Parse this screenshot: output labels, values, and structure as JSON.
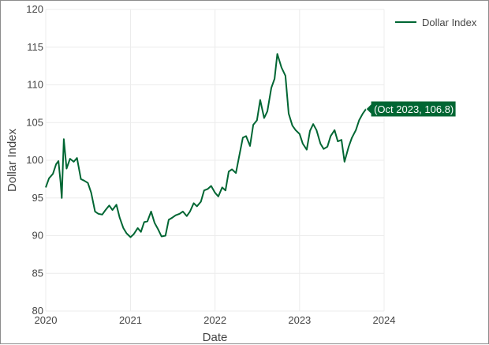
{
  "chart_data": {
    "type": "line",
    "title": "",
    "xlabel": "Date",
    "ylabel": "Dollar Index",
    "xlim": [
      "2020-01-01",
      "2024-01-01"
    ],
    "ylim": [
      80,
      120
    ],
    "x_ticks": [
      "2020",
      "2021",
      "2022",
      "2023",
      "2024"
    ],
    "y_ticks": [
      80,
      85,
      90,
      95,
      100,
      105,
      110,
      115,
      120
    ],
    "grid": true,
    "legend_position": "top-right",
    "series": [
      {
        "name": "Dollar Index",
        "color": "#006633",
        "x": [
          "2020-01-01",
          "2020-01-15",
          "2020-02-01",
          "2020-02-15",
          "2020-02-25",
          "2020-03-05",
          "2020-03-10",
          "2020-03-19",
          "2020-03-31",
          "2020-04-15",
          "2020-05-01",
          "2020-05-15",
          "2020-06-01",
          "2020-06-15",
          "2020-07-01",
          "2020-07-15",
          "2020-08-01",
          "2020-08-15",
          "2020-09-01",
          "2020-09-15",
          "2020-10-01",
          "2020-10-15",
          "2020-11-01",
          "2020-11-15",
          "2020-12-01",
          "2020-12-15",
          "2021-01-01",
          "2021-01-15",
          "2021-02-01",
          "2021-02-15",
          "2021-03-01",
          "2021-03-15",
          "2021-03-31",
          "2021-04-15",
          "2021-05-01",
          "2021-05-15",
          "2021-06-01",
          "2021-06-15",
          "2021-07-01",
          "2021-07-15",
          "2021-08-01",
          "2021-08-15",
          "2021-09-01",
          "2021-09-15",
          "2021-10-01",
          "2021-10-15",
          "2021-11-01",
          "2021-11-15",
          "2021-12-01",
          "2021-12-15",
          "2022-01-01",
          "2022-01-15",
          "2022-02-01",
          "2022-02-15",
          "2022-03-01",
          "2022-03-15",
          "2022-04-01",
          "2022-04-15",
          "2022-05-01",
          "2022-05-15",
          "2022-06-01",
          "2022-06-15",
          "2022-07-01",
          "2022-07-15",
          "2022-08-01",
          "2022-08-15",
          "2022-09-01",
          "2022-09-15",
          "2022-09-27",
          "2022-10-15",
          "2022-11-01",
          "2022-11-15",
          "2022-12-01",
          "2022-12-15",
          "2023-01-01",
          "2023-01-15",
          "2023-02-01",
          "2023-02-15",
          "2023-03-01",
          "2023-03-15",
          "2023-04-01",
          "2023-04-15",
          "2023-05-01",
          "2023-05-15",
          "2023-06-01",
          "2023-06-15",
          "2023-07-01",
          "2023-07-14",
          "2023-08-01",
          "2023-08-15",
          "2023-09-01",
          "2023-09-15",
          "2023-10-01",
          "2023-10-15"
        ],
        "y": [
          96.4,
          97.6,
          98.2,
          99.5,
          99.9,
          97.1,
          95.0,
          102.8,
          98.9,
          100.2,
          99.8,
          100.3,
          97.5,
          97.3,
          97.0,
          95.7,
          93.2,
          92.9,
          92.8,
          93.4,
          94.0,
          93.4,
          94.1,
          92.4,
          91.0,
          90.3,
          89.8,
          90.2,
          91.0,
          90.5,
          91.8,
          91.9,
          93.2,
          91.7,
          90.8,
          89.9,
          90.0,
          92.1,
          92.4,
          92.7,
          92.9,
          93.2,
          92.6,
          93.2,
          94.3,
          93.9,
          94.5,
          96.0,
          96.2,
          96.6,
          95.7,
          95.2,
          96.4,
          96.0,
          98.5,
          98.8,
          98.3,
          100.5,
          103.0,
          103.2,
          101.9,
          104.7,
          105.3,
          108.0,
          105.6,
          106.5,
          109.6,
          110.8,
          114.1,
          112.3,
          111.2,
          106.2,
          104.6,
          104.0,
          103.5,
          102.2,
          101.4,
          103.9,
          104.8,
          104.0,
          102.2,
          101.5,
          101.8,
          103.2,
          104.0,
          102.5,
          102.7,
          99.8,
          101.8,
          103.0,
          104.0,
          105.3,
          106.2,
          106.8
        ]
      }
    ],
    "annotations": [
      {
        "text": "(Oct 2023, 106.8)",
        "x": "2023-10-15",
        "y": 106.8
      }
    ]
  }
}
